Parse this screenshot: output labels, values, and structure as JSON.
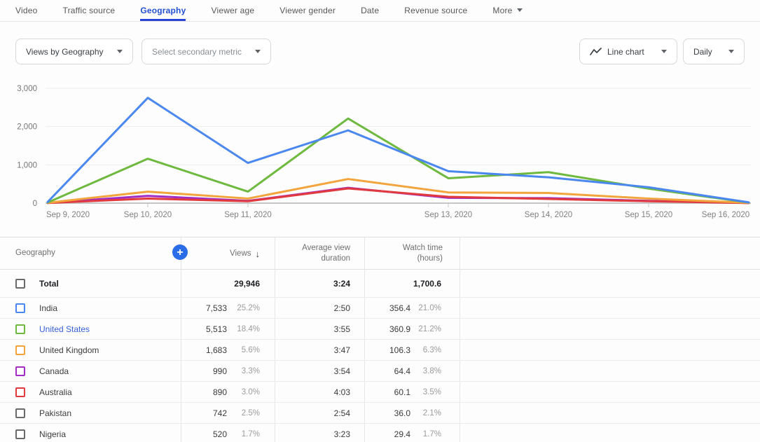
{
  "tabs": [
    {
      "label": "Video",
      "active": false
    },
    {
      "label": "Traffic source",
      "active": false
    },
    {
      "label": "Geography",
      "active": true
    },
    {
      "label": "Viewer age",
      "active": false
    },
    {
      "label": "Viewer gender",
      "active": false
    },
    {
      "label": "Date",
      "active": false
    },
    {
      "label": "Revenue source",
      "active": false
    },
    {
      "label": "More",
      "active": false,
      "caret": true
    }
  ],
  "controls": {
    "primary_metric": "Views by Geography",
    "secondary_metric_placeholder": "Select secondary metric",
    "chart_type": "Line chart",
    "interval": "Daily"
  },
  "chart_data": {
    "type": "line",
    "title": "Views by Geography",
    "x": [
      "Sep 9, 2020",
      "Sep 10, 2020",
      "Sep 11, 2020",
      "Sep 12, 2020",
      "Sep 13, 2020",
      "Sep 14, 2020",
      "Sep 15, 2020",
      "Sep 16, 2020"
    ],
    "x_axis_labels": [
      "Sep 9, 2020",
      "Sep 10, 2020",
      "Sep 11, 2020",
      "",
      "Sep 13, 2020",
      "Sep 14, 2020",
      "Sep 15, 2020",
      "Sep 16, 2020"
    ],
    "ylim": [
      0,
      3000
    ],
    "yticks": [
      0,
      1000,
      2000,
      3000
    ],
    "ytick_labels": [
      "0",
      "1,000",
      "2,000",
      "3,000"
    ],
    "grid": true,
    "legend_position": "none",
    "series": [
      {
        "name": "Canada",
        "color": "#a32cc4",
        "values": [
          5,
          190,
          60,
          400,
          140,
          130,
          60,
          5
        ]
      },
      {
        "name": "Australia",
        "color": "#e03a3f",
        "values": [
          5,
          120,
          50,
          385,
          165,
          110,
          50,
          3
        ]
      },
      {
        "name": "United Kingdom",
        "color": "#f2a53d",
        "values": [
          10,
          300,
          120,
          630,
          280,
          265,
          120,
          8
        ]
      },
      {
        "name": "United States",
        "color": "#6fb93f",
        "values": [
          15,
          1160,
          300,
          2210,
          650,
          810,
          380,
          15
        ]
      },
      {
        "name": "India",
        "color": "#4a87ee",
        "values": [
          30,
          2750,
          1050,
          1900,
          835,
          675,
          415,
          20
        ]
      }
    ]
  },
  "table": {
    "headers": {
      "geography": "Geography",
      "views": "Views",
      "sort_icon": "↓",
      "avg_line1": "Average view",
      "avg_line2": "duration",
      "watch_line1": "Watch time",
      "watch_line2": "(hours)"
    },
    "add_button_icon": "+",
    "total": {
      "label": "Total",
      "views": "29,946",
      "duration": "3:24",
      "watch": "1,700.6"
    },
    "rows": [
      {
        "name": "India",
        "checkbox_color": "#4a87ee",
        "views": "7,533",
        "views_pct": "25.2%",
        "duration": "2:50",
        "watch": "356.4",
        "watch_pct": "21.0%",
        "link": false
      },
      {
        "name": "United States",
        "checkbox_color": "#6fb93f",
        "views": "5,513",
        "views_pct": "18.4%",
        "duration": "3:55",
        "watch": "360.9",
        "watch_pct": "21.2%",
        "link": true
      },
      {
        "name": "United Kingdom",
        "checkbox_color": "#f2a53d",
        "views": "1,683",
        "views_pct": "5.6%",
        "duration": "3:47",
        "watch": "106.3",
        "watch_pct": "6.3%",
        "link": false
      },
      {
        "name": "Canada",
        "checkbox_color": "#a32cc4",
        "views": "990",
        "views_pct": "3.3%",
        "duration": "3:54",
        "watch": "64.4",
        "watch_pct": "3.8%",
        "link": false
      },
      {
        "name": "Australia",
        "checkbox_color": "#e03a3f",
        "views": "890",
        "views_pct": "3.0%",
        "duration": "4:03",
        "watch": "60.1",
        "watch_pct": "3.5%",
        "link": false
      },
      {
        "name": "Pakistan",
        "checkbox_color": "#6a6a6a",
        "views": "742",
        "views_pct": "2.5%",
        "duration": "2:54",
        "watch": "36.0",
        "watch_pct": "2.1%",
        "link": false
      },
      {
        "name": "Nigeria",
        "checkbox_color": "#6a6a6a",
        "views": "520",
        "views_pct": "1.7%",
        "duration": "3:23",
        "watch": "29.4",
        "watch_pct": "1.7%",
        "link": false
      }
    ]
  },
  "colors": {
    "accent_blue": "#2b6de8",
    "active_tab_blue": "#2250d2",
    "link_blue": "#3560d6"
  }
}
